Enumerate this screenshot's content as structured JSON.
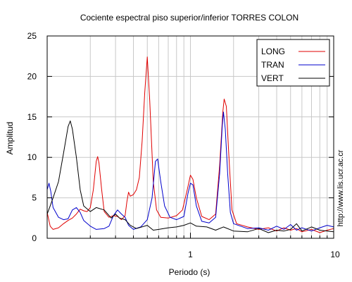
{
  "chart_data": {
    "type": "line",
    "title": "Cociente espectral piso superior/inferior  TORRES COLON",
    "xlabel": "Periodo (s)",
    "ylabel": "Amplitud",
    "xscale": "log",
    "xlim": [
      0.1,
      10
    ],
    "ylim": [
      0,
      25
    ],
    "x_tick_labels": [
      "1",
      "10"
    ],
    "y_tick_labels": [
      "0",
      "5",
      "10",
      "15",
      "20",
      "25"
    ],
    "y_ticks": [
      0,
      5,
      10,
      15,
      20,
      25
    ],
    "x_major_ticks": [
      1,
      10
    ],
    "grid": true,
    "legend_position": "top-right",
    "credit": "http://www.lis.ucr.ac.cr",
    "series": [
      {
        "name": "LONG",
        "color": "#e00000",
        "points": [
          [
            0.1,
            3.2
          ],
          [
            0.105,
            1.5
          ],
          [
            0.11,
            1.1
          ],
          [
            0.12,
            1.3
          ],
          [
            0.13,
            1.8
          ],
          [
            0.14,
            2.2
          ],
          [
            0.15,
            2.5
          ],
          [
            0.16,
            3.0
          ],
          [
            0.17,
            3.6
          ],
          [
            0.18,
            3.4
          ],
          [
            0.19,
            3.3
          ],
          [
            0.2,
            3.8
          ],
          [
            0.21,
            6.0
          ],
          [
            0.22,
            9.5
          ],
          [
            0.225,
            10.1
          ],
          [
            0.23,
            9.3
          ],
          [
            0.24,
            6.0
          ],
          [
            0.25,
            3.3
          ],
          [
            0.27,
            2.6
          ],
          [
            0.29,
            2.8
          ],
          [
            0.31,
            2.7
          ],
          [
            0.33,
            2.3
          ],
          [
            0.35,
            2.8
          ],
          [
            0.36,
            4.5
          ],
          [
            0.37,
            5.7
          ],
          [
            0.38,
            5.2
          ],
          [
            0.4,
            5.4
          ],
          [
            0.42,
            6.0
          ],
          [
            0.44,
            7.5
          ],
          [
            0.46,
            12.0
          ],
          [
            0.48,
            18.0
          ],
          [
            0.5,
            22.4
          ],
          [
            0.52,
            17.0
          ],
          [
            0.55,
            7.0
          ],
          [
            0.58,
            3.5
          ],
          [
            0.62,
            2.6
          ],
          [
            0.7,
            2.5
          ],
          [
            0.8,
            2.8
          ],
          [
            0.88,
            3.5
          ],
          [
            0.95,
            6.0
          ],
          [
            1.0,
            7.8
          ],
          [
            1.04,
            7.3
          ],
          [
            1.1,
            5.0
          ],
          [
            1.2,
            2.7
          ],
          [
            1.35,
            2.3
          ],
          [
            1.5,
            3.0
          ],
          [
            1.6,
            9.0
          ],
          [
            1.68,
            15.5
          ],
          [
            1.72,
            17.2
          ],
          [
            1.78,
            16.3
          ],
          [
            1.85,
            10.5
          ],
          [
            1.95,
            3.5
          ],
          [
            2.1,
            1.8
          ],
          [
            2.5,
            1.4
          ],
          [
            3.0,
            1.1
          ],
          [
            3.5,
            1.3
          ],
          [
            4.0,
            0.9
          ],
          [
            4.5,
            1.3
          ],
          [
            5.0,
            1.0
          ],
          [
            5.5,
            1.2
          ],
          [
            6.0,
            0.8
          ],
          [
            7.0,
            1.1
          ],
          [
            8.0,
            0.7
          ],
          [
            9.0,
            1.0
          ],
          [
            10.0,
            1.2
          ]
        ]
      },
      {
        "name": "TRAN",
        "color": "#0000cc",
        "points": [
          [
            0.1,
            6.0
          ],
          [
            0.103,
            6.8
          ],
          [
            0.106,
            5.8
          ],
          [
            0.11,
            3.8
          ],
          [
            0.12,
            2.6
          ],
          [
            0.13,
            2.3
          ],
          [
            0.14,
            2.4
          ],
          [
            0.15,
            3.5
          ],
          [
            0.16,
            3.8
          ],
          [
            0.17,
            3.2
          ],
          [
            0.18,
            2.2
          ],
          [
            0.2,
            1.5
          ],
          [
            0.22,
            1.1
          ],
          [
            0.25,
            1.2
          ],
          [
            0.27,
            1.5
          ],
          [
            0.29,
            2.8
          ],
          [
            0.31,
            3.5
          ],
          [
            0.33,
            3.0
          ],
          [
            0.35,
            2.6
          ],
          [
            0.37,
            1.6
          ],
          [
            0.4,
            1.1
          ],
          [
            0.45,
            1.4
          ],
          [
            0.5,
            2.3
          ],
          [
            0.54,
            5.0
          ],
          [
            0.57,
            9.5
          ],
          [
            0.59,
            9.8
          ],
          [
            0.62,
            7.0
          ],
          [
            0.66,
            4.0
          ],
          [
            0.72,
            2.6
          ],
          [
            0.8,
            2.3
          ],
          [
            0.9,
            2.7
          ],
          [
            0.96,
            5.5
          ],
          [
            1.0,
            6.8
          ],
          [
            1.04,
            6.6
          ],
          [
            1.1,
            4.0
          ],
          [
            1.2,
            2.1
          ],
          [
            1.35,
            1.9
          ],
          [
            1.5,
            2.6
          ],
          [
            1.6,
            8.0
          ],
          [
            1.67,
            14.0
          ],
          [
            1.7,
            15.6
          ],
          [
            1.75,
            13.5
          ],
          [
            1.82,
            8.0
          ],
          [
            1.9,
            3.2
          ],
          [
            2.0,
            1.8
          ],
          [
            2.5,
            1.2
          ],
          [
            3.0,
            1.3
          ],
          [
            3.5,
            1.0
          ],
          [
            4.0,
            1.5
          ],
          [
            4.5,
            1.1
          ],
          [
            5.0,
            1.7
          ],
          [
            5.5,
            1.0
          ],
          [
            6.0,
            1.3
          ],
          [
            7.0,
            0.9
          ],
          [
            8.0,
            1.3
          ],
          [
            9.0,
            1.6
          ],
          [
            10.0,
            1.4
          ]
        ]
      },
      {
        "name": "VERT",
        "color": "#000000",
        "points": [
          [
            0.1,
            3.0
          ],
          [
            0.105,
            4.0
          ],
          [
            0.11,
            5.0
          ],
          [
            0.12,
            7.0
          ],
          [
            0.13,
            10.5
          ],
          [
            0.14,
            13.8
          ],
          [
            0.145,
            14.5
          ],
          [
            0.15,
            13.5
          ],
          [
            0.16,
            10.0
          ],
          [
            0.17,
            6.0
          ],
          [
            0.18,
            4.0
          ],
          [
            0.2,
            3.3
          ],
          [
            0.22,
            3.8
          ],
          [
            0.25,
            3.5
          ],
          [
            0.28,
            2.5
          ],
          [
            0.3,
            3.0
          ],
          [
            0.32,
            2.5
          ],
          [
            0.35,
            2.3
          ],
          [
            0.38,
            1.6
          ],
          [
            0.42,
            1.2
          ],
          [
            0.5,
            1.6
          ],
          [
            0.55,
            1.0
          ],
          [
            0.6,
            1.1
          ],
          [
            0.7,
            1.3
          ],
          [
            0.8,
            1.4
          ],
          [
            0.9,
            1.6
          ],
          [
            1.0,
            1.9
          ],
          [
            1.1,
            1.5
          ],
          [
            1.3,
            1.4
          ],
          [
            1.5,
            1.0
          ],
          [
            1.7,
            1.4
          ],
          [
            2.0,
            0.9
          ],
          [
            2.5,
            0.8
          ],
          [
            3.0,
            1.2
          ],
          [
            3.5,
            0.7
          ],
          [
            4.0,
            1.0
          ],
          [
            4.5,
            0.9
          ],
          [
            5.0,
            1.1
          ],
          [
            5.5,
            1.8
          ],
          [
            6.0,
            0.9
          ],
          [
            7.0,
            1.4
          ],
          [
            8.0,
            1.0
          ],
          [
            9.0,
            0.9
          ],
          [
            10.0,
            0.8
          ]
        ]
      }
    ]
  }
}
